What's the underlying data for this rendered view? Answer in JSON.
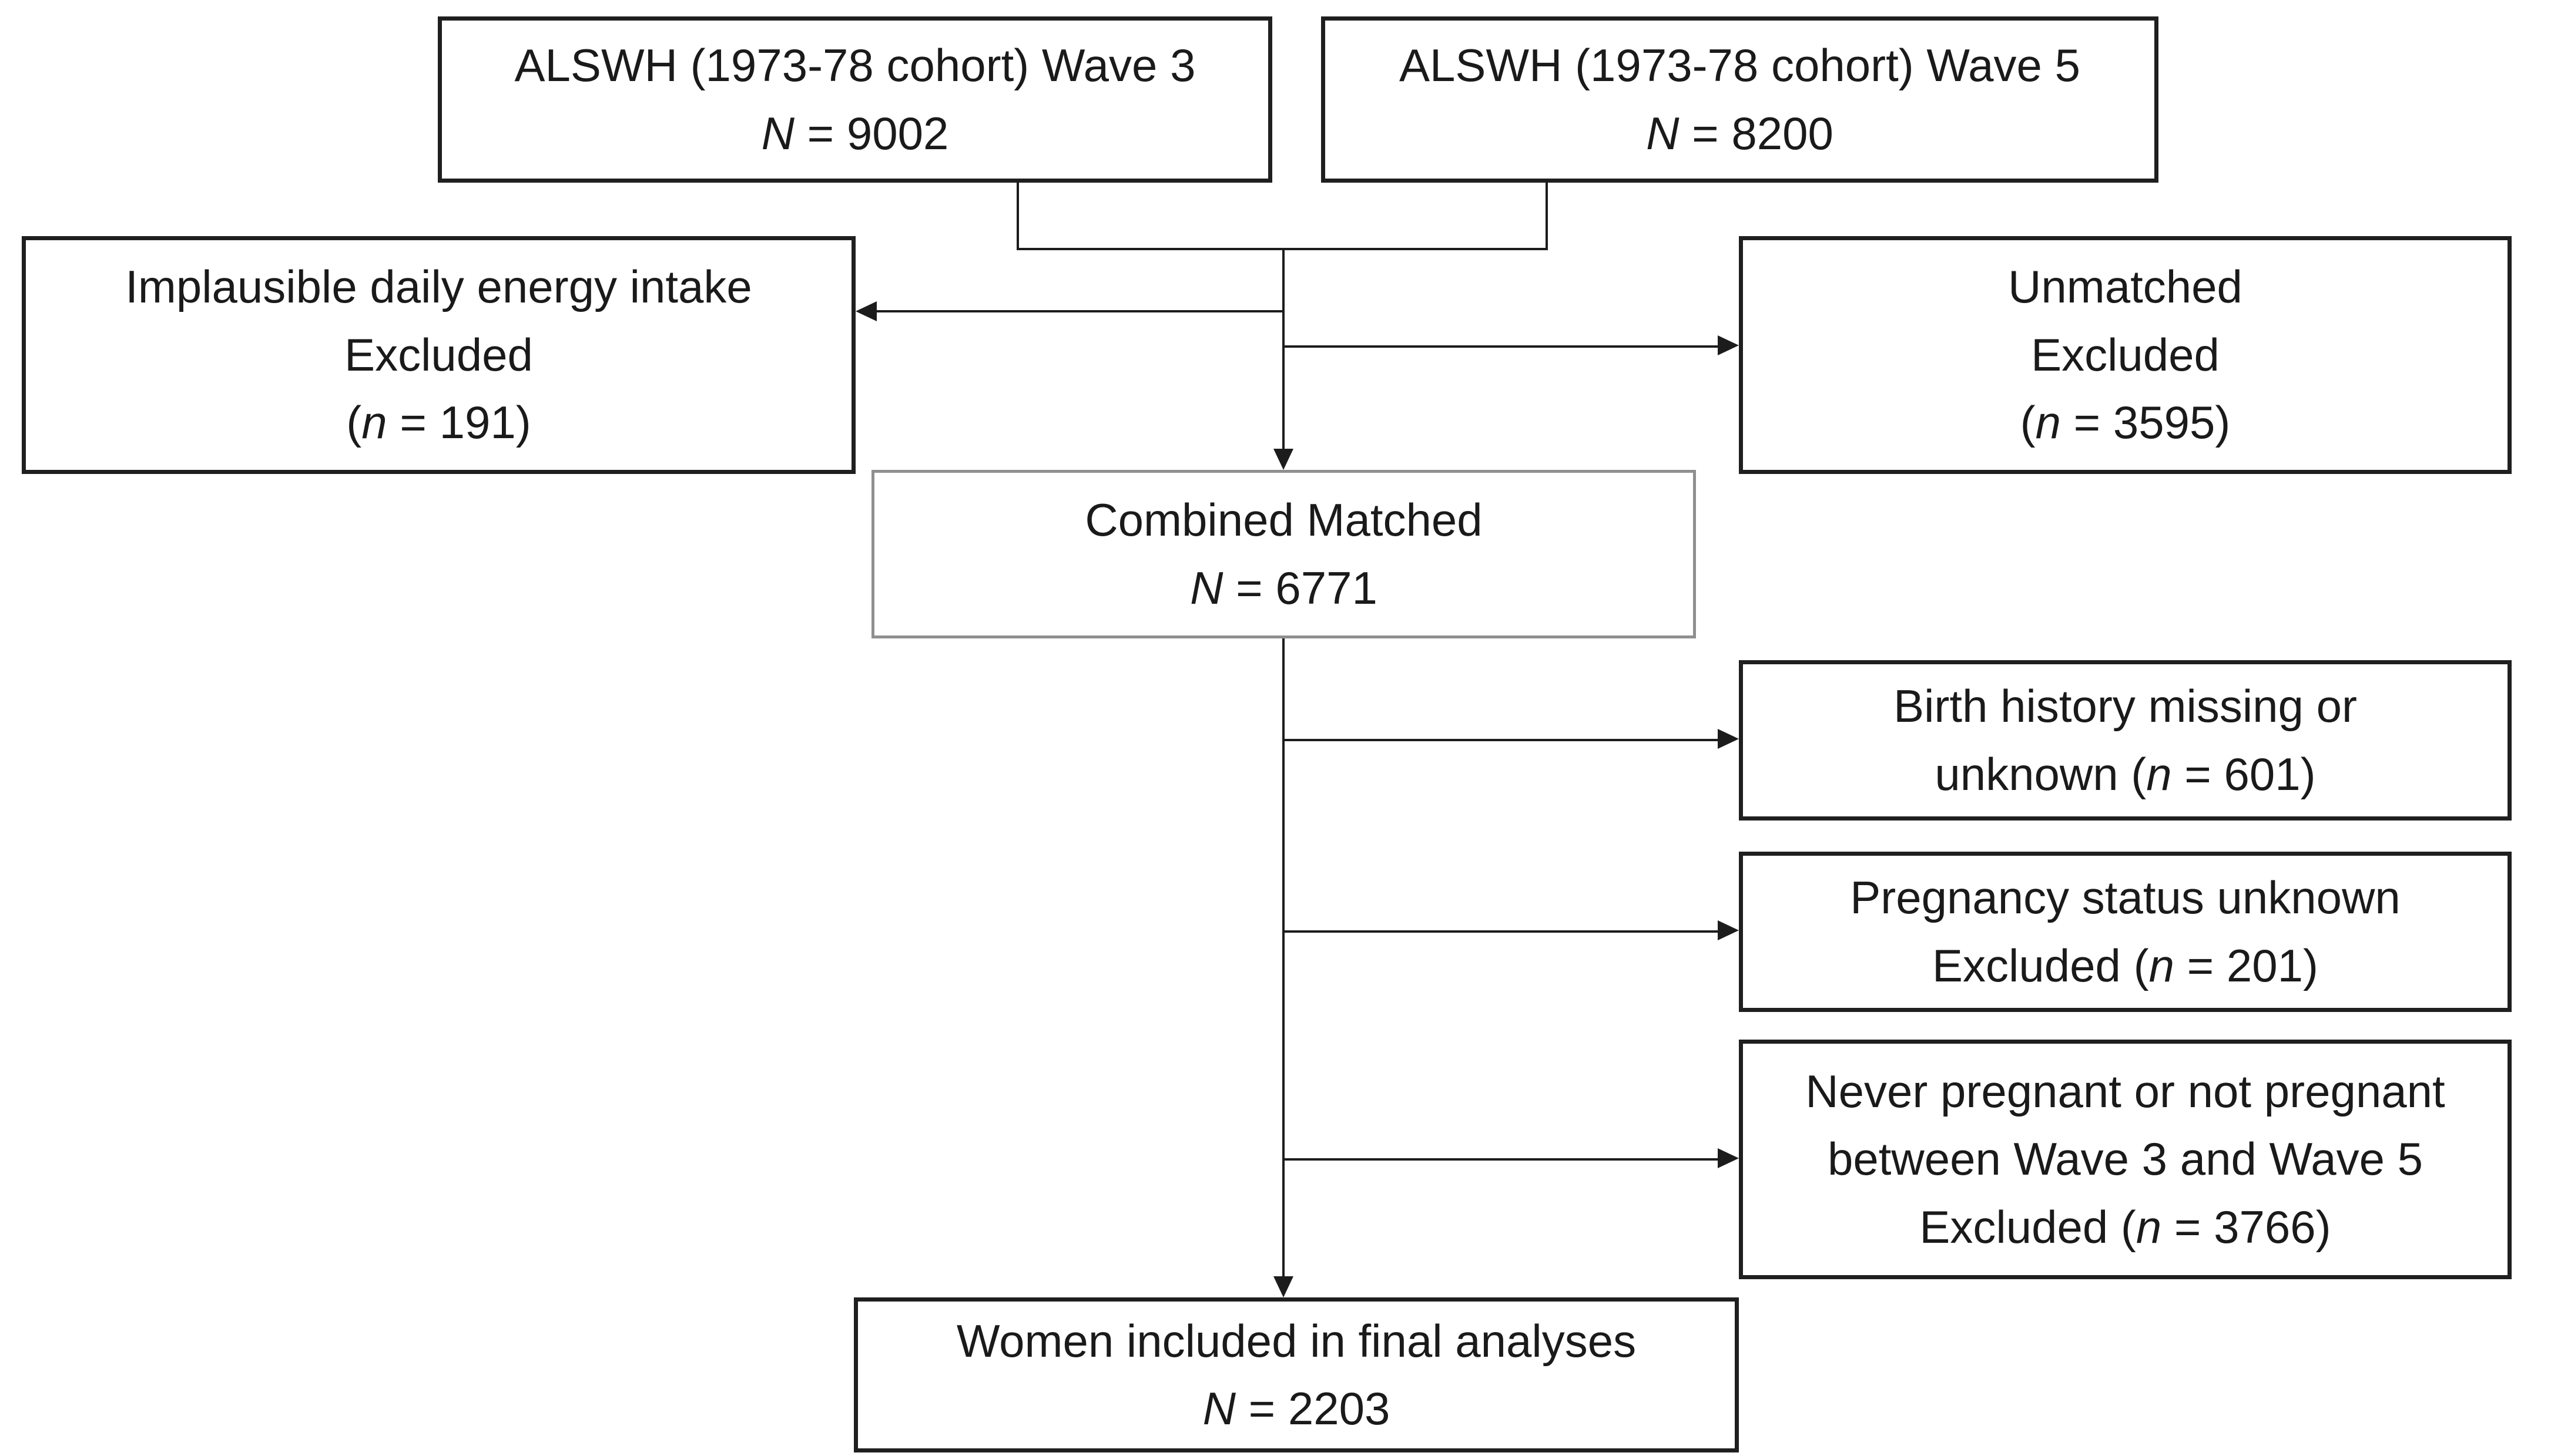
{
  "colors": {
    "background": "#ffffff",
    "box_border": "#1f1f1f",
    "combined_box_border": "#8f8f8f",
    "connector": "#1c1c1c",
    "text": "#1a1a1a"
  },
  "boxes": {
    "wave3": {
      "lines": [
        [
          {
            "t": "ALSWH (1973-78 cohort) Wave 3"
          }
        ],
        [
          {
            "t": "N",
            "i": true
          },
          {
            "t": " = 9002"
          }
        ]
      ]
    },
    "wave5": {
      "lines": [
        [
          {
            "t": "ALSWH (1973-78 cohort) Wave 5"
          }
        ],
        [
          {
            "t": "N",
            "i": true
          },
          {
            "t": " = 8200"
          }
        ]
      ]
    },
    "implausible": {
      "lines": [
        [
          {
            "t": "Implausible daily energy intake"
          }
        ],
        [
          {
            "t": "Excluded"
          }
        ],
        [
          {
            "t": "("
          },
          {
            "t": "n",
            "i": true
          },
          {
            "t": " = 191)"
          }
        ]
      ]
    },
    "unmatched": {
      "lines": [
        [
          {
            "t": "Unmatched"
          }
        ],
        [
          {
            "t": "Excluded"
          }
        ],
        [
          {
            "t": "("
          },
          {
            "t": "n",
            "i": true
          },
          {
            "t": " = 3595)"
          }
        ]
      ]
    },
    "combined": {
      "lines": [
        [
          {
            "t": "Combined Matched"
          }
        ],
        [
          {
            "t": "N",
            "i": true
          },
          {
            "t": " = 6771"
          }
        ]
      ]
    },
    "birth": {
      "lines": [
        [
          {
            "t": "Birth history missing or"
          }
        ],
        [
          {
            "t": "unknown ("
          },
          {
            "t": "n",
            "i": true
          },
          {
            "t": " = 601)"
          }
        ]
      ]
    },
    "pregnancy": {
      "lines": [
        [
          {
            "t": "Pregnancy status unknown"
          }
        ],
        [
          {
            "t": "Excluded ("
          },
          {
            "t": "n",
            "i": true
          },
          {
            "t": " = 201)"
          }
        ]
      ]
    },
    "never": {
      "lines": [
        [
          {
            "t": "Never pregnant or not pregnant"
          }
        ],
        [
          {
            "t": "between Wave 3 and Wave 5"
          }
        ],
        [
          {
            "t": "Excluded ("
          },
          {
            "t": "n",
            "i": true
          },
          {
            "t": " = 3766)"
          }
        ]
      ]
    },
    "final": {
      "lines": [
        [
          {
            "t": "Women included in final analyses"
          }
        ],
        [
          {
            "t": "N",
            "i": true
          },
          {
            "t": " = 2203"
          }
        ]
      ]
    }
  },
  "connectors": [
    {
      "name": "merge-bracket",
      "from": [
        "wave3",
        "wave5"
      ],
      "to": "junction"
    },
    {
      "name": "arrow-to-implausible",
      "from": "junction",
      "to": "implausible"
    },
    {
      "name": "arrow-to-unmatched",
      "from": "junction",
      "to": "unmatched"
    },
    {
      "name": "arrow-to-combined",
      "from": "junction",
      "to": "combined"
    },
    {
      "name": "arrow-to-birth",
      "from": "spine",
      "to": "birth"
    },
    {
      "name": "arrow-to-pregnancy",
      "from": "spine",
      "to": "pregnancy"
    },
    {
      "name": "arrow-to-never",
      "from": "spine",
      "to": "never"
    },
    {
      "name": "arrow-to-final",
      "from": "spine",
      "to": "final"
    }
  ]
}
